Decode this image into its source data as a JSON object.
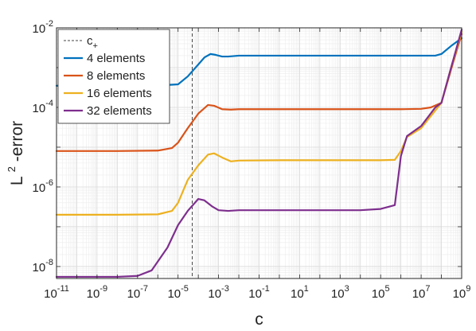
{
  "chart_data": {
    "type": "line",
    "xscale": "log",
    "yscale": "log",
    "xlabel": {
      "base": "c",
      "exponent": ""
    },
    "ylabel": {
      "base": "L",
      "exponent": "2",
      "suffix": "-error"
    },
    "xlim": [
      1e-11,
      1000000000.0
    ],
    "ylim": [
      5e-09,
      0.01
    ],
    "x_ticks": [
      {
        "base": "10",
        "exp": "-11",
        "value": 1e-11
      },
      {
        "base": "10",
        "exp": "-9",
        "value": 1e-09
      },
      {
        "base": "10",
        "exp": "-7",
        "value": 1e-07
      },
      {
        "base": "10",
        "exp": "-5",
        "value": 1e-05
      },
      {
        "base": "10",
        "exp": "-3",
        "value": 0.001
      },
      {
        "base": "10",
        "exp": "-1",
        "value": 0.1
      },
      {
        "base": "10",
        "exp": "1",
        "value": 10.0
      },
      {
        "base": "10",
        "exp": "3",
        "value": 1000.0
      },
      {
        "base": "10",
        "exp": "5",
        "value": 100000.0
      },
      {
        "base": "10",
        "exp": "7",
        "value": 10000000.0
      },
      {
        "base": "10",
        "exp": "9",
        "value": 1000000000.0
      }
    ],
    "y_ticks": [
      {
        "base": "10",
        "exp": "-8",
        "value": 1e-08
      },
      {
        "base": "10",
        "exp": "-6",
        "value": 1e-06
      },
      {
        "base": "10",
        "exp": "-4",
        "value": 0.0001
      },
      {
        "base": "10",
        "exp": "-2",
        "value": 0.01
      }
    ],
    "grid": true,
    "minor_grid": true,
    "legend_position": "top-left",
    "reference_line": {
      "label_base": "c",
      "label_sub": "+",
      "x": 5e-05,
      "color": "#444444",
      "style": "dashed"
    },
    "series": [
      {
        "name": "4 elements",
        "color": "#0072BD",
        "points": [
          [
            1e-11,
            0.00035
          ],
          [
            1e-08,
            0.00035
          ],
          [
            1e-06,
            0.000355
          ],
          [
            1e-05,
            0.00038
          ],
          [
            3e-05,
            0.0006
          ],
          [
            0.0001,
            0.0012
          ],
          [
            0.0002,
            0.0018
          ],
          [
            0.0004,
            0.0022
          ],
          [
            0.0007,
            0.0021
          ],
          [
            0.0015,
            0.0019
          ],
          [
            0.003,
            0.0019
          ],
          [
            0.01,
            0.002
          ],
          [
            1.0,
            0.002
          ],
          [
            10000.0,
            0.002
          ],
          [
            1000000.0,
            0.002
          ],
          [
            50000000.0,
            0.002
          ],
          [
            100000000.0,
            0.0022
          ],
          [
            300000000.0,
            0.0035
          ],
          [
            1000000000.0,
            0.0055
          ]
        ]
      },
      {
        "name": "8 elements",
        "color": "#D95319",
        "points": [
          [
            1e-11,
            8e-06
          ],
          [
            1e-08,
            8e-06
          ],
          [
            1e-06,
            8.2e-06
          ],
          [
            5e-06,
            9.5e-06
          ],
          [
            1e-05,
            1.3e-05
          ],
          [
            3e-05,
            3e-05
          ],
          [
            0.0001,
            7e-05
          ],
          [
            0.0003,
            0.000115
          ],
          [
            0.0006,
            0.00011
          ],
          [
            0.0015,
            9e-05
          ],
          [
            0.004,
            8.8e-05
          ],
          [
            0.01,
            9e-05
          ],
          [
            1.0,
            9e-05
          ],
          [
            10000.0,
            9e-05
          ],
          [
            1000000.0,
            9e-05
          ],
          [
            10000000.0,
            9.2e-05
          ],
          [
            30000000.0,
            0.0001
          ],
          [
            100000000.0,
            0.00013
          ],
          [
            300000000.0,
            0.0009
          ],
          [
            1000000000.0,
            0.007
          ]
        ]
      },
      {
        "name": "16 elements",
        "color": "#EDB120",
        "points": [
          [
            1e-11,
            2e-07
          ],
          [
            1e-08,
            2e-07
          ],
          [
            1e-06,
            2.05e-07
          ],
          [
            5e-06,
            2.5e-07
          ],
          [
            1e-05,
            4e-07
          ],
          [
            3e-05,
            1.5e-06
          ],
          [
            0.0001,
            3.5e-06
          ],
          [
            0.0003,
            6.5e-06
          ],
          [
            0.0006,
            7e-06
          ],
          [
            0.0015,
            5.5e-06
          ],
          [
            0.004,
            4.4e-06
          ],
          [
            0.01,
            4.6e-06
          ],
          [
            1.0,
            4.7e-06
          ],
          [
            10000.0,
            4.7e-06
          ],
          [
            100000.0,
            4.7e-06
          ],
          [
            500000.0,
            4.8e-06
          ],
          [
            1000000.0,
            8e-06
          ],
          [
            2000000.0,
            1.8e-05
          ],
          [
            10000000.0,
            3e-05
          ],
          [
            100000000.0,
            0.00013
          ],
          [
            300000000.0,
            0.001
          ],
          [
            1000000000.0,
            0.008
          ]
        ]
      },
      {
        "name": "32 elements",
        "color": "#7E2F8E",
        "points": [
          [
            1e-11,
            5.5e-09
          ],
          [
            1e-08,
            5.5e-09
          ],
          [
            1e-07,
            5.8e-09
          ],
          [
            5e-07,
            8e-09
          ],
          [
            3e-06,
            3e-08
          ],
          [
            1e-05,
            1.1e-07
          ],
          [
            3e-05,
            2.5e-07
          ],
          [
            0.0001,
            5e-07
          ],
          [
            0.0002,
            4.6e-07
          ],
          [
            0.0005,
            3.2e-07
          ],
          [
            0.001,
            2.6e-07
          ],
          [
            0.003,
            2.5e-07
          ],
          [
            0.01,
            2.6e-07
          ],
          [
            1.0,
            2.6e-07
          ],
          [
            1000.0,
            2.6e-07
          ],
          [
            10000.0,
            2.6e-07
          ],
          [
            100000.0,
            2.8e-07
          ],
          [
            500000.0,
            3.5e-07
          ],
          [
            1000000.0,
            6e-06
          ],
          [
            2000000.0,
            1.9e-05
          ],
          [
            10000000.0,
            3.4e-05
          ],
          [
            50000000.0,
            0.0001
          ],
          [
            100000000.0,
            0.00013
          ],
          [
            300000000.0,
            0.001
          ],
          [
            1000000000.0,
            0.009
          ]
        ]
      }
    ]
  }
}
